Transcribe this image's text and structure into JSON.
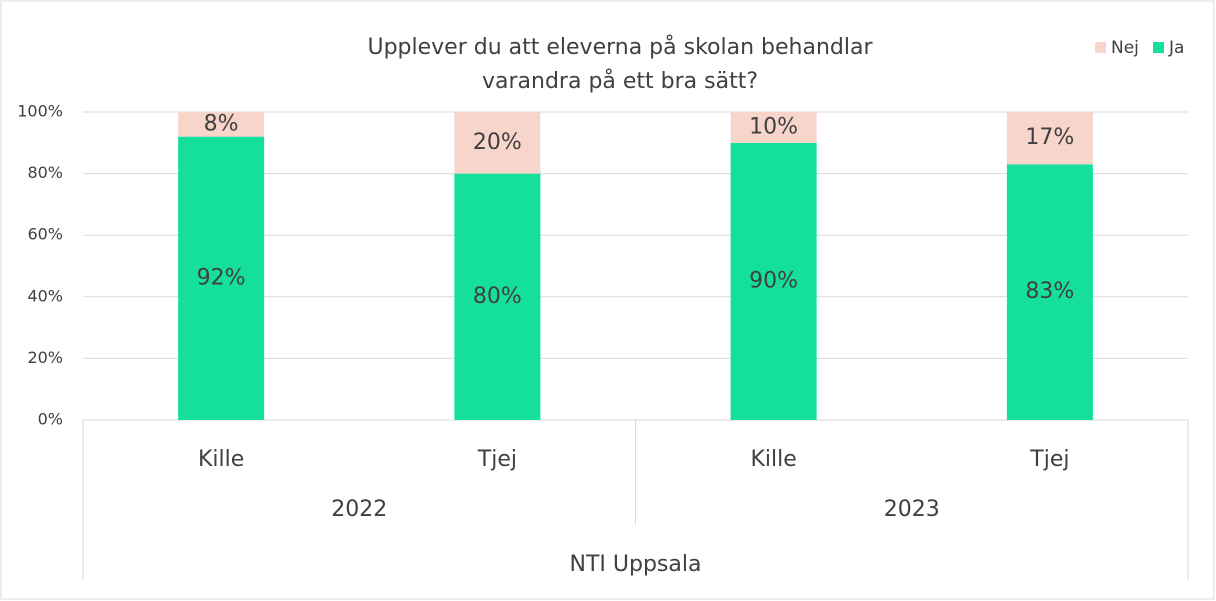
{
  "chart_data": {
    "type": "stacked_bar",
    "title": [
      "Upplever du att eleverna på skolan behandlar",
      "varandra på ett bra sätt?"
    ],
    "categories": [
      "Kille",
      "Tjej",
      "Kille",
      "Tjej"
    ],
    "groups": [
      "2022",
      "2023"
    ],
    "super_group": "NTI Uppsala",
    "series": [
      {
        "name": "Ja",
        "color": "#14e09c",
        "values": [
          92,
          80,
          90,
          83
        ],
        "value_labels": [
          "92%",
          "80%",
          "90%",
          "83%"
        ]
      },
      {
        "name": "Nej",
        "color": "#f7d5cb",
        "values": [
          8,
          20,
          10,
          17
        ],
        "value_labels": [
          "8%",
          "20%",
          "10%",
          "17%"
        ]
      }
    ],
    "ylim": [
      0,
      100
    ],
    "yticks": [
      {
        "value": 0,
        "label": "0%"
      },
      {
        "value": 20,
        "label": "20%"
      },
      {
        "value": 40,
        "label": "40%"
      },
      {
        "value": 60,
        "label": "60%"
      },
      {
        "value": 80,
        "label": "80%"
      },
      {
        "value": 100,
        "label": "100%"
      }
    ],
    "grid": true,
    "legend": "top-right"
  }
}
